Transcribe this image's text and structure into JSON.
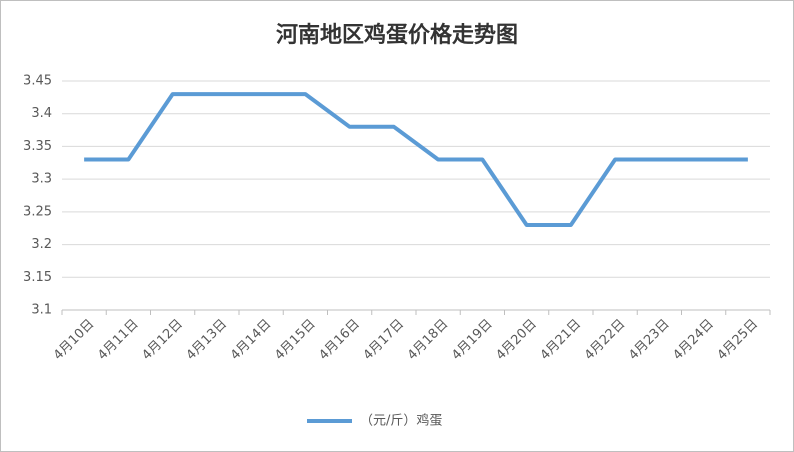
{
  "chart_data": {
    "type": "line",
    "title": "河南地区鸡蛋价格走势图",
    "categories": [
      "4月10日",
      "4月11日",
      "4月12日",
      "4月13日",
      "4月14日",
      "4月15日",
      "4月16日",
      "4月17日",
      "4月18日",
      "4月19日",
      "4月20日",
      "4月21日",
      "4月22日",
      "4月23日",
      "4月24日",
      "4月25日"
    ],
    "series": [
      {
        "name": "（元/斤）鸡蛋",
        "color": "#5b9bd5",
        "values": [
          3.33,
          3.33,
          3.43,
          3.43,
          3.43,
          3.43,
          3.38,
          3.38,
          3.33,
          3.33,
          3.23,
          3.23,
          3.33,
          3.33,
          3.33,
          3.33
        ]
      }
    ],
    "ylim": [
      3.1,
      3.45
    ],
    "yticks": [
      3.1,
      3.15,
      3.2,
      3.25,
      3.3,
      3.35,
      3.4,
      3.45
    ],
    "grid": true,
    "legend": "bottom"
  }
}
